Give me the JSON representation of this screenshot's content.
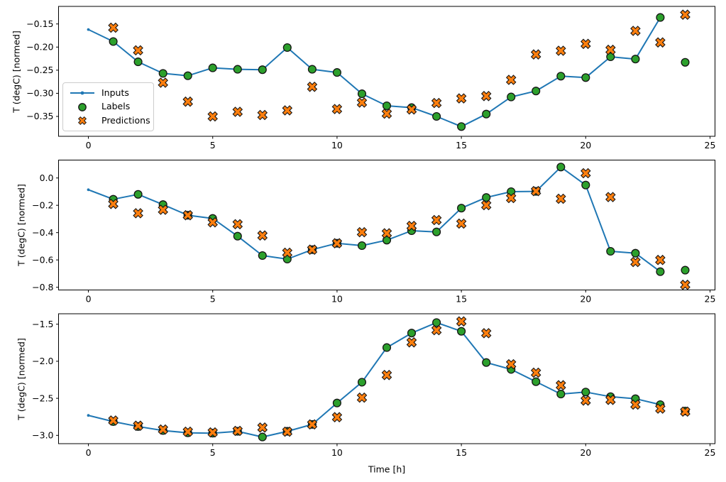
{
  "figure": {
    "background": "#ffffff",
    "xlabel": "Time [h]",
    "ylabel": "T (degC) [normed]",
    "legend": {
      "position": "upper-left-of-first-subplot",
      "items": [
        {
          "label": "Inputs",
          "marker": "line-with-dot",
          "color": "#1f77b4"
        },
        {
          "label": "Labels",
          "marker": "filled-circle",
          "color": "#2ca02c"
        },
        {
          "label": "Predictions",
          "marker": "filled-x",
          "color": "#ff7f0e"
        }
      ]
    },
    "colors": {
      "inputs_line": "#1f77b4",
      "labels_marker": "#2ca02c",
      "predictions_marker": "#ff7f0e",
      "marker_edge": "#141414",
      "axes": "#000000"
    }
  },
  "chart_data": [
    {
      "type": "line",
      "subplot": 1,
      "ylabel": "T (degC) [normed]",
      "xlabel": "",
      "grid": false,
      "xlim": [
        -1.2,
        25.2
      ],
      "ylim": [
        -0.393,
        -0.112
      ],
      "xticks": {
        "values": [
          0,
          5,
          10,
          15,
          20,
          25
        ],
        "labels": [
          "0",
          "5",
          "10",
          "15",
          "20",
          "25"
        ]
      },
      "yticks": {
        "values": [
          -0.15,
          -0.2,
          -0.25,
          -0.3,
          -0.35
        ],
        "labels": [
          "−0.15",
          "−0.20",
          "−0.25",
          "−0.30",
          "−0.35"
        ]
      },
      "series": [
        {
          "name": "Inputs",
          "kind": "line",
          "marker": "dot",
          "color": "#1f77b4",
          "x": [
            0,
            1,
            2,
            3,
            4,
            5,
            6,
            7,
            8,
            9,
            10,
            11,
            12,
            13,
            14,
            15,
            16,
            17,
            18,
            19,
            20,
            21,
            22,
            23
          ],
          "values": [
            -0.162,
            -0.188,
            -0.232,
            -0.257,
            -0.262,
            -0.245,
            -0.248,
            -0.249,
            -0.201,
            -0.248,
            -0.255,
            -0.301,
            -0.327,
            -0.331,
            -0.35,
            -0.372,
            -0.345,
            -0.308,
            -0.295,
            -0.263,
            -0.266,
            -0.221,
            -0.226,
            -0.136
          ]
        },
        {
          "name": "Labels",
          "kind": "scatter",
          "marker": "circle",
          "color": "#2ca02c",
          "x": [
            1,
            2,
            3,
            4,
            5,
            6,
            7,
            8,
            9,
            10,
            11,
            12,
            13,
            14,
            15,
            16,
            17,
            18,
            19,
            20,
            21,
            22,
            23,
            24
          ],
          "values": [
            -0.188,
            -0.232,
            -0.257,
            -0.262,
            -0.245,
            -0.248,
            -0.249,
            -0.201,
            -0.248,
            -0.255,
            -0.301,
            -0.327,
            -0.331,
            -0.35,
            -0.372,
            -0.345,
            -0.308,
            -0.295,
            -0.263,
            -0.266,
            -0.221,
            -0.226,
            -0.136,
            -0.233
          ]
        },
        {
          "name": "Predictions",
          "kind": "scatter",
          "marker": "X",
          "color": "#ff7f0e",
          "x": [
            1,
            2,
            3,
            4,
            5,
            6,
            7,
            8,
            9,
            10,
            11,
            12,
            13,
            14,
            15,
            16,
            17,
            18,
            19,
            20,
            21,
            22,
            23,
            24
          ],
          "values": [
            -0.158,
            -0.207,
            -0.277,
            -0.318,
            -0.35,
            -0.34,
            -0.347,
            -0.337,
            -0.286,
            -0.334,
            -0.32,
            -0.344,
            -0.335,
            -0.321,
            -0.311,
            -0.306,
            -0.271,
            -0.216,
            -0.208,
            -0.193,
            -0.206,
            -0.165,
            -0.19,
            -0.13
          ]
        }
      ]
    },
    {
      "type": "line",
      "subplot": 2,
      "ylabel": "T (degC) [normed]",
      "xlabel": "",
      "grid": false,
      "xlim": [
        -1.2,
        25.2
      ],
      "ylim": [
        -0.82,
        0.131
      ],
      "xticks": {
        "values": [
          0,
          5,
          10,
          15,
          20,
          25
        ],
        "labels": [
          "0",
          "5",
          "10",
          "15",
          "20",
          "25"
        ]
      },
      "yticks": {
        "values": [
          0.0,
          -0.2,
          -0.4,
          -0.6,
          -0.8
        ],
        "labels": [
          "0.0",
          "−0.2",
          "−0.4",
          "−0.6",
          "−0.8"
        ]
      },
      "series": [
        {
          "name": "Inputs",
          "kind": "line",
          "marker": "dot",
          "color": "#1f77b4",
          "x": [
            0,
            1,
            2,
            3,
            4,
            5,
            6,
            7,
            8,
            9,
            10,
            11,
            12,
            13,
            14,
            15,
            16,
            17,
            18,
            19,
            20,
            21,
            22,
            23
          ],
          "values": [
            -0.086,
            -0.156,
            -0.12,
            -0.195,
            -0.273,
            -0.296,
            -0.426,
            -0.568,
            -0.594,
            -0.525,
            -0.478,
            -0.495,
            -0.455,
            -0.386,
            -0.395,
            -0.221,
            -0.143,
            -0.1,
            -0.098,
            0.08,
            -0.052,
            -0.537,
            -0.551,
            -0.686
          ]
        },
        {
          "name": "Labels",
          "kind": "scatter",
          "marker": "circle",
          "color": "#2ca02c",
          "x": [
            1,
            2,
            3,
            4,
            5,
            6,
            7,
            8,
            9,
            10,
            11,
            12,
            13,
            14,
            15,
            16,
            17,
            18,
            19,
            20,
            21,
            22,
            23,
            24
          ],
          "values": [
            -0.156,
            -0.12,
            -0.195,
            -0.273,
            -0.296,
            -0.426,
            -0.568,
            -0.594,
            -0.525,
            -0.478,
            -0.495,
            -0.455,
            -0.386,
            -0.395,
            -0.221,
            -0.143,
            -0.1,
            -0.098,
            0.08,
            -0.052,
            -0.537,
            -0.551,
            -0.686,
            -0.675
          ]
        },
        {
          "name": "Predictions",
          "kind": "scatter",
          "marker": "X",
          "color": "#ff7f0e",
          "x": [
            1,
            2,
            3,
            4,
            5,
            6,
            7,
            8,
            9,
            10,
            11,
            12,
            13,
            14,
            15,
            16,
            17,
            18,
            19,
            20,
            21,
            22,
            23,
            24
          ],
          "values": [
            -0.19,
            -0.258,
            -0.233,
            -0.273,
            -0.325,
            -0.339,
            -0.421,
            -0.547,
            -0.525,
            -0.478,
            -0.397,
            -0.405,
            -0.351,
            -0.308,
            -0.334,
            -0.199,
            -0.147,
            -0.096,
            -0.152,
            0.035,
            -0.14,
            -0.615,
            -0.6,
            -0.782
          ]
        }
      ]
    },
    {
      "type": "line",
      "subplot": 3,
      "ylabel": "T (degC) [normed]",
      "xlabel": "Time [h]",
      "grid": false,
      "xlim": [
        -1.2,
        25.2
      ],
      "ylim": [
        -3.112,
        -1.359
      ],
      "xticks": {
        "values": [
          0,
          5,
          10,
          15,
          20,
          25
        ],
        "labels": [
          "0",
          "5",
          "10",
          "15",
          "20",
          "25"
        ]
      },
      "yticks": {
        "values": [
          -1.5,
          -2.0,
          -2.5,
          -3.0
        ],
        "labels": [
          "−1.5",
          "−2.0",
          "−2.5",
          "−3.0"
        ]
      },
      "series": [
        {
          "name": "Inputs",
          "kind": "line",
          "marker": "dot",
          "color": "#1f77b4",
          "x": [
            0,
            1,
            2,
            3,
            4,
            5,
            6,
            7,
            8,
            9,
            10,
            11,
            12,
            13,
            14,
            15,
            16,
            17,
            18,
            19,
            20,
            21,
            22,
            23
          ],
          "values": [
            -2.731,
            -2.814,
            -2.88,
            -2.935,
            -2.965,
            -2.97,
            -2.945,
            -3.022,
            -2.945,
            -2.852,
            -2.563,
            -2.282,
            -1.815,
            -1.62,
            -1.478,
            -1.596,
            -2.017,
            -2.11,
            -2.276,
            -2.442,
            -2.416,
            -2.478,
            -2.506,
            -2.585
          ]
        },
        {
          "name": "Labels",
          "kind": "scatter",
          "marker": "circle",
          "color": "#2ca02c",
          "x": [
            1,
            2,
            3,
            4,
            5,
            6,
            7,
            8,
            9,
            10,
            11,
            12,
            13,
            14,
            15,
            16,
            17,
            18,
            19,
            20,
            21,
            22,
            23,
            24
          ],
          "values": [
            -2.814,
            -2.88,
            -2.935,
            -2.965,
            -2.97,
            -2.945,
            -3.022,
            -2.945,
            -2.852,
            -2.563,
            -2.282,
            -1.815,
            -1.62,
            -1.478,
            -1.596,
            -2.017,
            -2.11,
            -2.276,
            -2.442,
            -2.416,
            -2.478,
            -2.506,
            -2.585,
            -2.671
          ]
        },
        {
          "name": "Predictions",
          "kind": "scatter",
          "marker": "X",
          "color": "#ff7f0e",
          "x": [
            1,
            2,
            3,
            4,
            5,
            6,
            7,
            8,
            9,
            10,
            11,
            12,
            13,
            14,
            15,
            16,
            17,
            18,
            19,
            20,
            21,
            22,
            23,
            24
          ],
          "values": [
            -2.8,
            -2.87,
            -2.92,
            -2.95,
            -2.96,
            -2.94,
            -2.895,
            -2.95,
            -2.852,
            -2.755,
            -2.49,
            -2.186,
            -1.745,
            -1.58,
            -1.462,
            -1.621,
            -2.04,
            -2.154,
            -2.324,
            -2.531,
            -2.521,
            -2.585,
            -2.639,
            -2.68
          ]
        }
      ]
    }
  ]
}
